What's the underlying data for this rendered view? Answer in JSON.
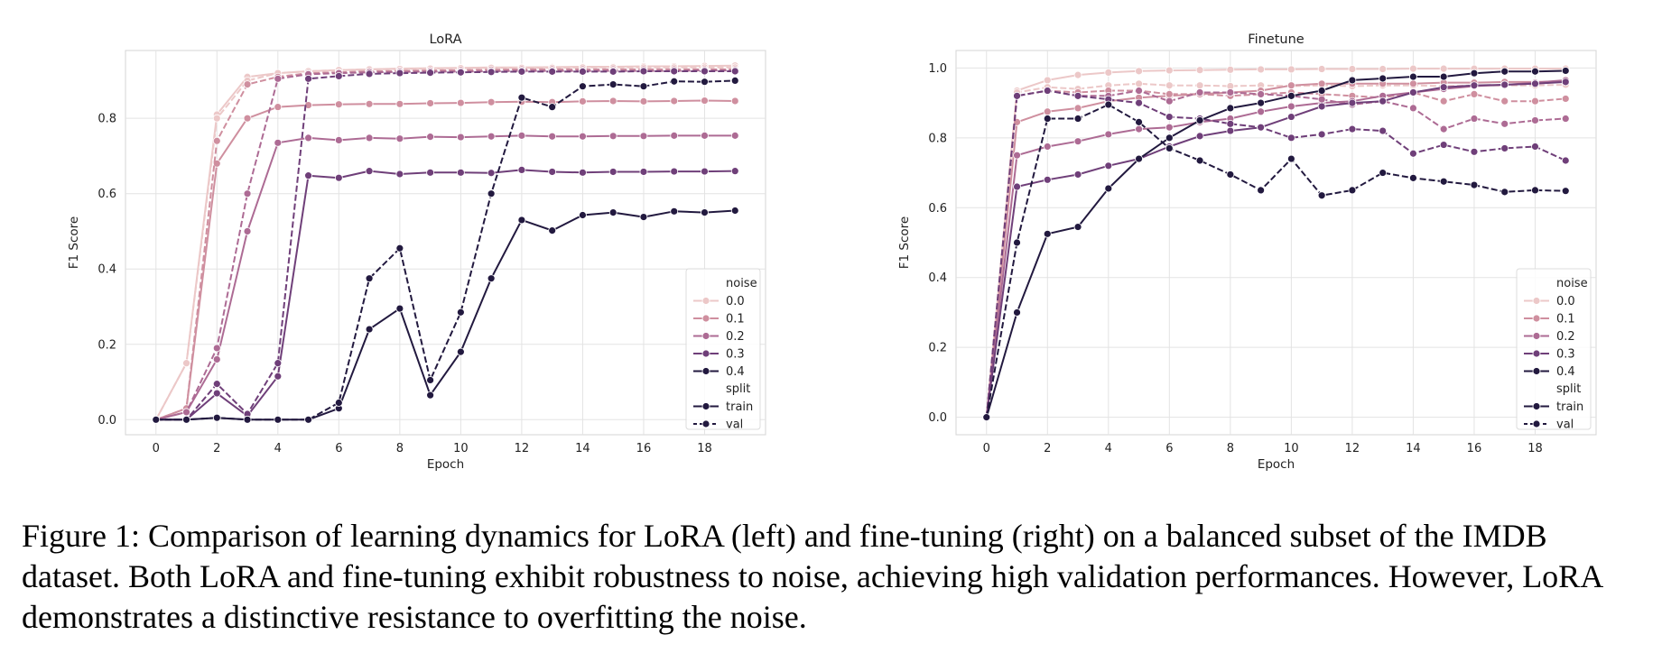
{
  "caption": "Figure 1: Comparison of learning dynamics for LoRA (left) and fine-tuning (right) on a balanced subset of the IMDB dataset. Both LoRA and fine-tuning exhibit robustness to noise, achieving high validation performances. However, LoRA demonstrates a distinctive resistance to overfitting the noise.",
  "colors": {
    "0.0": "#ecc8c8",
    "0.1": "#cf8f9f",
    "0.2": "#ad6b94",
    "0.3": "#6f3f79",
    "0.4": "#22193f"
  },
  "chart_data": [
    {
      "type": "line",
      "title": "LoRA",
      "xlabel": "Epoch",
      "ylabel": "F1 Score",
      "xlim": [
        -1,
        20
      ],
      "ylim": [
        -0.04,
        0.98
      ],
      "xticks": [
        0,
        2,
        4,
        6,
        8,
        10,
        12,
        14,
        16,
        18
      ],
      "yticks": [
        0.0,
        0.2,
        0.4,
        0.6,
        0.8
      ],
      "grid": true,
      "legend_position": "right",
      "legend": {
        "noise_title": "noise",
        "noise_levels": [
          "0.0",
          "0.1",
          "0.2",
          "0.3",
          "0.4"
        ],
        "split_title": "split",
        "splits": [
          "train",
          "val"
        ]
      },
      "x": [
        0,
        1,
        2,
        3,
        4,
        5,
        6,
        7,
        8,
        9,
        10,
        11,
        12,
        13,
        14,
        15,
        16,
        17,
        18,
        19
      ],
      "series": [
        {
          "noise": "0.0",
          "split": "train",
          "values": [
            0.0,
            0.15,
            0.81,
            0.91,
            0.92,
            0.925,
            0.928,
            0.93,
            0.932,
            0.933,
            0.934,
            0.935,
            0.935,
            0.936,
            0.937,
            0.937,
            0.938,
            0.938,
            0.939,
            0.94
          ]
        },
        {
          "noise": "0.0",
          "split": "val",
          "values": [
            0.0,
            0.15,
            0.8,
            0.9,
            0.92,
            0.925,
            0.928,
            0.93,
            0.931,
            0.932,
            0.933,
            0.934,
            0.934,
            0.934,
            0.935,
            0.935,
            0.935,
            0.935,
            0.935,
            0.935
          ]
        },
        {
          "noise": "0.1",
          "split": "train",
          "values": [
            0.0,
            0.03,
            0.68,
            0.8,
            0.83,
            0.835,
            0.837,
            0.838,
            0.838,
            0.84,
            0.841,
            0.843,
            0.844,
            0.843,
            0.845,
            0.846,
            0.845,
            0.846,
            0.847,
            0.846
          ]
        },
        {
          "noise": "0.1",
          "split": "val",
          "values": [
            0.0,
            0.03,
            0.74,
            0.89,
            0.91,
            0.92,
            0.922,
            0.925,
            0.926,
            0.927,
            0.928,
            0.929,
            0.93,
            0.93,
            0.93,
            0.93,
            0.93,
            0.93,
            0.93,
            0.93
          ]
        },
        {
          "noise": "0.2",
          "split": "train",
          "values": [
            0.0,
            0.02,
            0.16,
            0.5,
            0.735,
            0.748,
            0.742,
            0.748,
            0.746,
            0.751,
            0.75,
            0.752,
            0.754,
            0.752,
            0.752,
            0.753,
            0.753,
            0.754,
            0.754,
            0.754
          ]
        },
        {
          "noise": "0.2",
          "split": "val",
          "values": [
            0.0,
            0.02,
            0.19,
            0.6,
            0.905,
            0.917,
            0.92,
            0.922,
            0.923,
            0.924,
            0.924,
            0.925,
            0.926,
            0.926,
            0.926,
            0.926,
            0.926,
            0.926,
            0.927,
            0.927
          ]
        },
        {
          "noise": "0.3",
          "split": "train",
          "values": [
            0.0,
            0.0,
            0.07,
            0.01,
            0.115,
            0.648,
            0.642,
            0.66,
            0.652,
            0.656,
            0.656,
            0.655,
            0.663,
            0.658,
            0.656,
            0.658,
            0.658,
            0.659,
            0.659,
            0.66
          ]
        },
        {
          "noise": "0.3",
          "split": "val",
          "values": [
            0.0,
            0.0,
            0.095,
            0.015,
            0.15,
            0.905,
            0.912,
            0.918,
            0.92,
            0.921,
            0.922,
            0.923,
            0.924,
            0.924,
            0.924,
            0.924,
            0.925,
            0.925,
            0.925,
            0.925
          ]
        },
        {
          "noise": "0.4",
          "split": "train",
          "values": [
            0.0,
            0.0,
            0.005,
            0.0,
            0.0,
            0.0,
            0.03,
            0.24,
            0.295,
            0.065,
            0.18,
            0.375,
            0.53,
            0.502,
            0.543,
            0.55,
            0.538,
            0.553,
            0.55,
            0.555
          ]
        },
        {
          "noise": "0.4",
          "split": "val",
          "values": [
            0.0,
            0.0,
            0.005,
            0.0,
            0.0,
            0.0,
            0.045,
            0.375,
            0.455,
            0.105,
            0.285,
            0.6,
            0.855,
            0.83,
            0.885,
            0.89,
            0.885,
            0.898,
            0.897,
            0.9
          ]
        }
      ]
    },
    {
      "type": "line",
      "title": "Finetune",
      "xlabel": "Epoch",
      "ylabel": "F1 Score",
      "xlim": [
        -1,
        20
      ],
      "ylim": [
        -0.05,
        1.05
      ],
      "xticks": [
        0,
        2,
        4,
        6,
        8,
        10,
        12,
        14,
        16,
        18
      ],
      "yticks": [
        0.0,
        0.2,
        0.4,
        0.6,
        0.8,
        1.0
      ],
      "grid": true,
      "legend_position": "right",
      "legend": {
        "noise_title": "noise",
        "noise_levels": [
          "0.0",
          "0.1",
          "0.2",
          "0.3",
          "0.4"
        ],
        "split_title": "split",
        "splits": [
          "train",
          "val"
        ]
      },
      "x": [
        0,
        1,
        2,
        3,
        4,
        5,
        6,
        7,
        8,
        9,
        10,
        11,
        12,
        13,
        14,
        15,
        16,
        17,
        18,
        19
      ],
      "series": [
        {
          "noise": "0.0",
          "split": "train",
          "values": [
            0.0,
            0.935,
            0.965,
            0.98,
            0.987,
            0.991,
            0.993,
            0.994,
            0.995,
            0.996,
            0.996,
            0.997,
            0.997,
            0.997,
            0.998,
            0.998,
            0.998,
            0.998,
            0.998,
            0.998
          ]
        },
        {
          "noise": "0.0",
          "split": "val",
          "values": [
            0.0,
            0.93,
            0.945,
            0.94,
            0.95,
            0.955,
            0.95,
            0.95,
            0.948,
            0.95,
            0.948,
            0.95,
            0.948,
            0.95,
            0.95,
            0.948,
            0.95,
            0.95,
            0.95,
            0.952
          ]
        },
        {
          "noise": "0.1",
          "split": "train",
          "values": [
            0.0,
            0.845,
            0.875,
            0.885,
            0.905,
            0.915,
            0.92,
            0.925,
            0.93,
            0.935,
            0.95,
            0.955,
            0.955,
            0.955,
            0.955,
            0.958,
            0.958,
            0.96,
            0.96,
            0.962
          ]
        },
        {
          "noise": "0.1",
          "split": "val",
          "values": [
            0.0,
            0.92,
            0.935,
            0.93,
            0.935,
            0.935,
            0.925,
            0.925,
            0.92,
            0.925,
            0.93,
            0.925,
            0.92,
            0.915,
            0.93,
            0.905,
            0.925,
            0.905,
            0.905,
            0.912
          ]
        },
        {
          "noise": "0.2",
          "split": "train",
          "values": [
            0.0,
            0.75,
            0.775,
            0.79,
            0.81,
            0.825,
            0.83,
            0.845,
            0.855,
            0.875,
            0.89,
            0.9,
            0.905,
            0.92,
            0.93,
            0.94,
            0.948,
            0.952,
            0.958,
            0.965
          ]
        },
        {
          "noise": "0.2",
          "split": "val",
          "values": [
            0.0,
            0.92,
            0.935,
            0.92,
            0.92,
            0.935,
            0.905,
            0.93,
            0.93,
            0.925,
            0.92,
            0.91,
            0.895,
            0.905,
            0.885,
            0.825,
            0.855,
            0.84,
            0.85,
            0.855
          ]
        },
        {
          "noise": "0.3",
          "split": "train",
          "values": [
            0.0,
            0.66,
            0.68,
            0.695,
            0.72,
            0.74,
            0.775,
            0.805,
            0.82,
            0.83,
            0.86,
            0.89,
            0.9,
            0.905,
            0.93,
            0.945,
            0.95,
            0.952,
            0.955,
            0.96
          ]
        },
        {
          "noise": "0.3",
          "split": "val",
          "values": [
            0.0,
            0.92,
            0.935,
            0.92,
            0.91,
            0.9,
            0.86,
            0.855,
            0.84,
            0.83,
            0.8,
            0.81,
            0.825,
            0.82,
            0.755,
            0.78,
            0.76,
            0.77,
            0.775,
            0.735
          ]
        },
        {
          "noise": "0.4",
          "split": "train",
          "values": [
            0.0,
            0.3,
            0.525,
            0.545,
            0.655,
            0.74,
            0.8,
            0.85,
            0.885,
            0.9,
            0.92,
            0.935,
            0.965,
            0.97,
            0.975,
            0.975,
            0.985,
            0.99,
            0.99,
            0.992
          ]
        },
        {
          "noise": "0.4",
          "split": "val",
          "values": [
            0.0,
            0.5,
            0.855,
            0.855,
            0.895,
            0.845,
            0.77,
            0.735,
            0.695,
            0.65,
            0.74,
            0.635,
            0.65,
            0.7,
            0.685,
            0.675,
            0.665,
            0.645,
            0.65,
            0.648
          ]
        }
      ]
    }
  ]
}
